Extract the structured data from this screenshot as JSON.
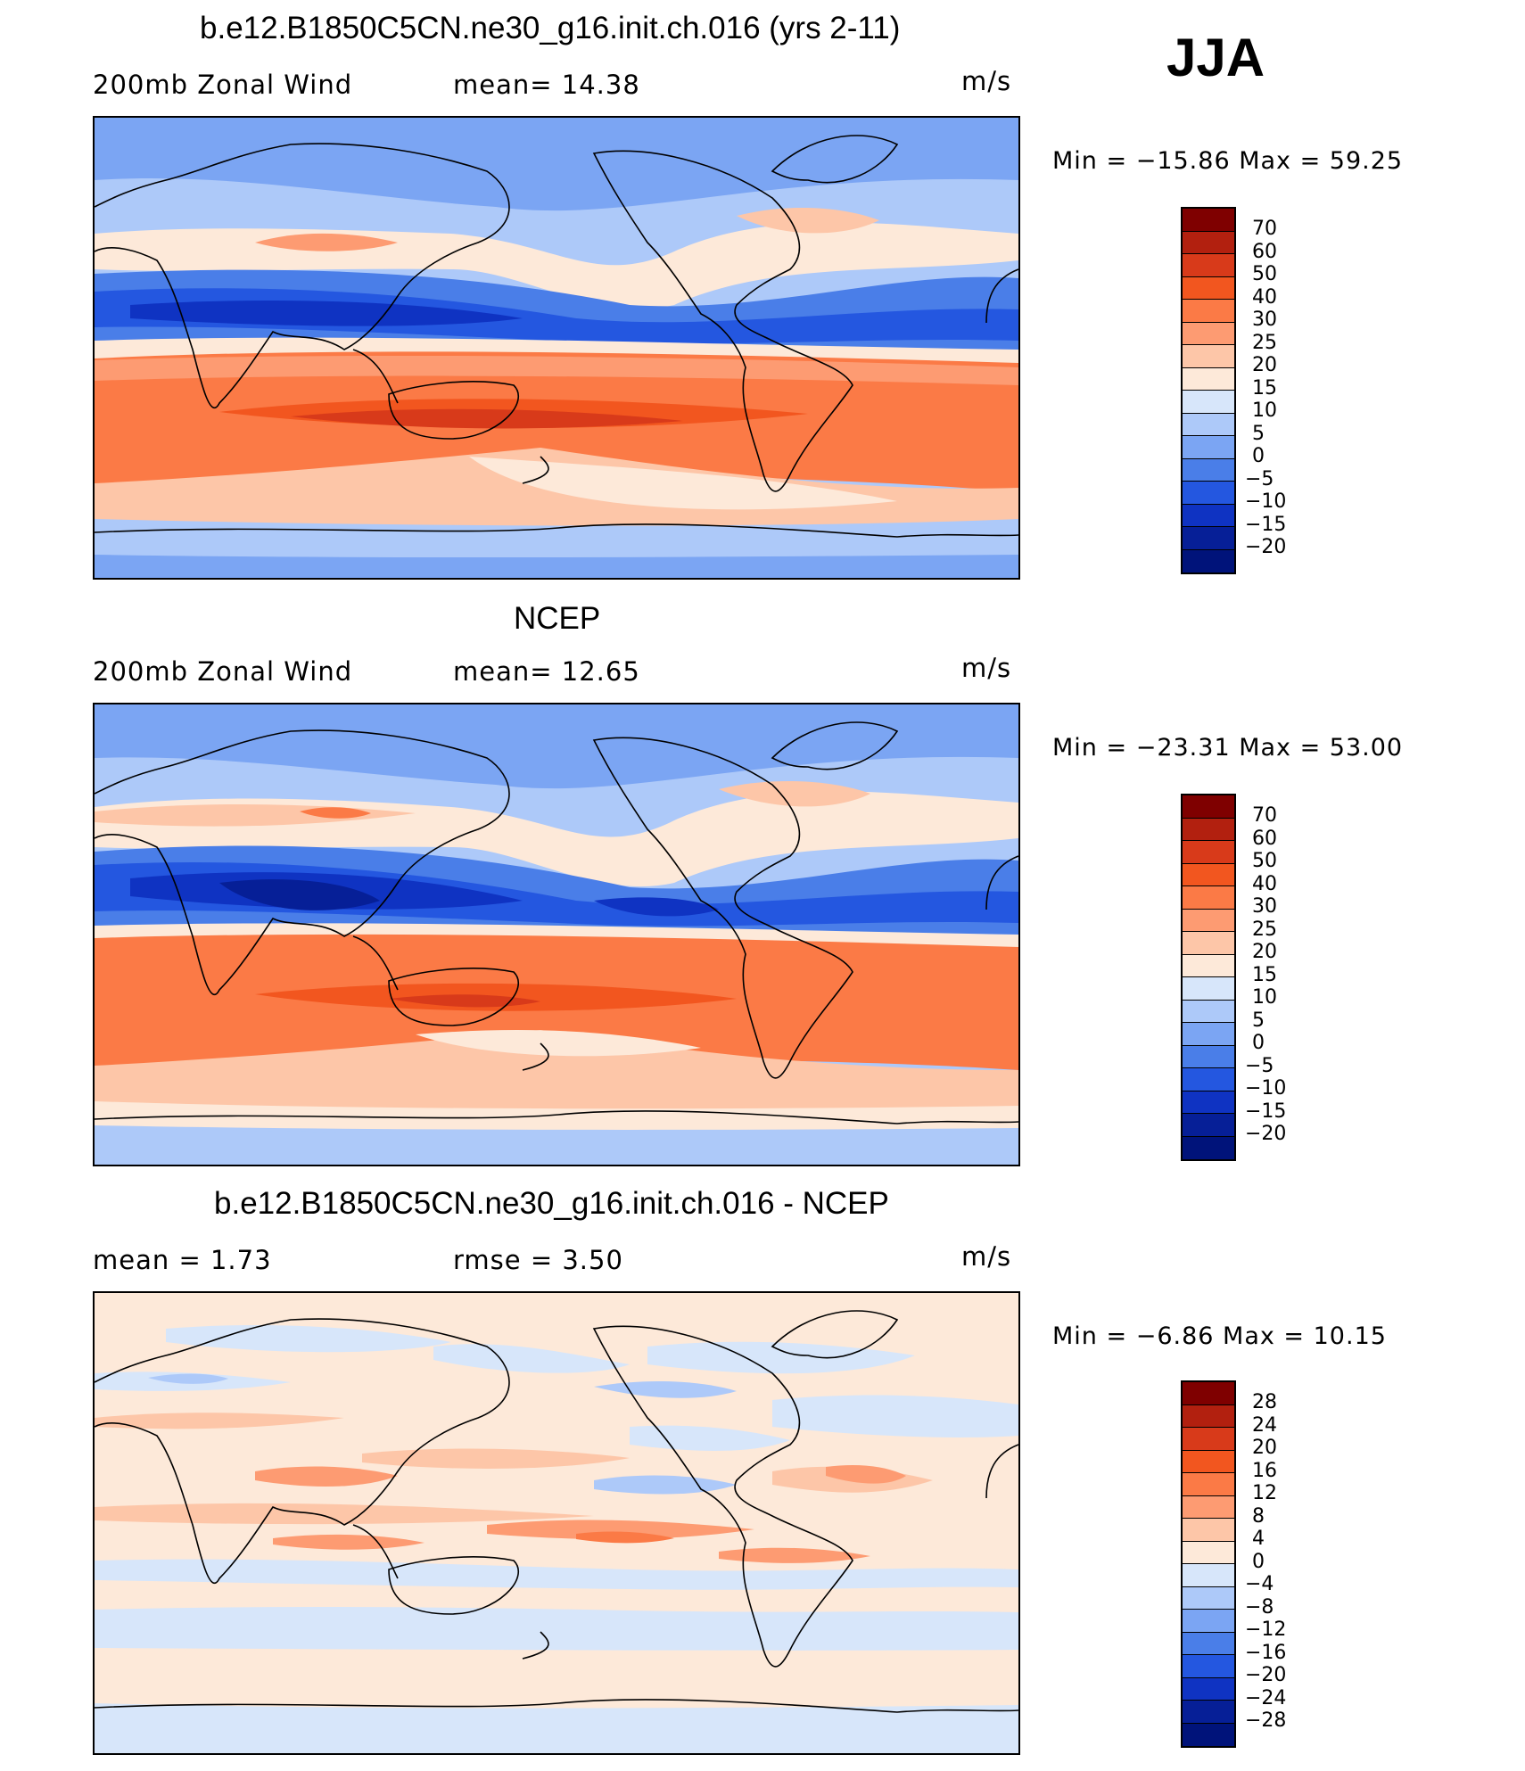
{
  "season": "JJA",
  "panels": [
    {
      "title": "b.e12.B1850C5CN.ne30_g16.init.ch.016 (yrs 2-11)",
      "left_label": "200mb Zonal Wind",
      "mid_label": "mean=   14.38",
      "units": "m/s",
      "minmax": "Min  =  −15.86  Max  =     59.25",
      "colorbar_labels": [
        "70",
        "60",
        "50",
        "40",
        "30",
        "25",
        "20",
        "15",
        "10",
        "5",
        "0",
        "−5",
        "−10",
        "−15",
        "−20"
      ]
    },
    {
      "title": "NCEP",
      "left_label": "200mb Zonal Wind",
      "mid_label": "mean=   12.65",
      "units": "m/s",
      "minmax": "Min  =  −23.31  Max  =     53.00",
      "colorbar_labels": [
        "70",
        "60",
        "50",
        "40",
        "30",
        "25",
        "20",
        "15",
        "10",
        "5",
        "0",
        "−5",
        "−10",
        "−15",
        "−20"
      ]
    },
    {
      "title": "b.e12.B1850C5CN.ne30_g16.init.ch.016 - NCEP",
      "left_label": "mean  =      1.73",
      "mid_label": "rmse  =      3.50",
      "units": "m/s",
      "minmax": "Min  =     −6.86  Max  =     10.15",
      "colorbar_labels": [
        "28",
        "24",
        "20",
        "16",
        "12",
        "8",
        "4",
        "0",
        "−4",
        "−8",
        "−12",
        "−16",
        "−20",
        "−24",
        "−28"
      ]
    }
  ],
  "colorbar_colors": [
    "#7f0000",
    "#b2200f",
    "#d83a1a",
    "#f2561f",
    "#fb7a46",
    "#fd9b72",
    "#fdc6a8",
    "#fde9d9",
    "#d7e6fa",
    "#adc9f9",
    "#7ba5f3",
    "#4a7ee8",
    "#2457e0",
    "#0f33c2",
    "#061f97",
    "#00137a"
  ]
}
